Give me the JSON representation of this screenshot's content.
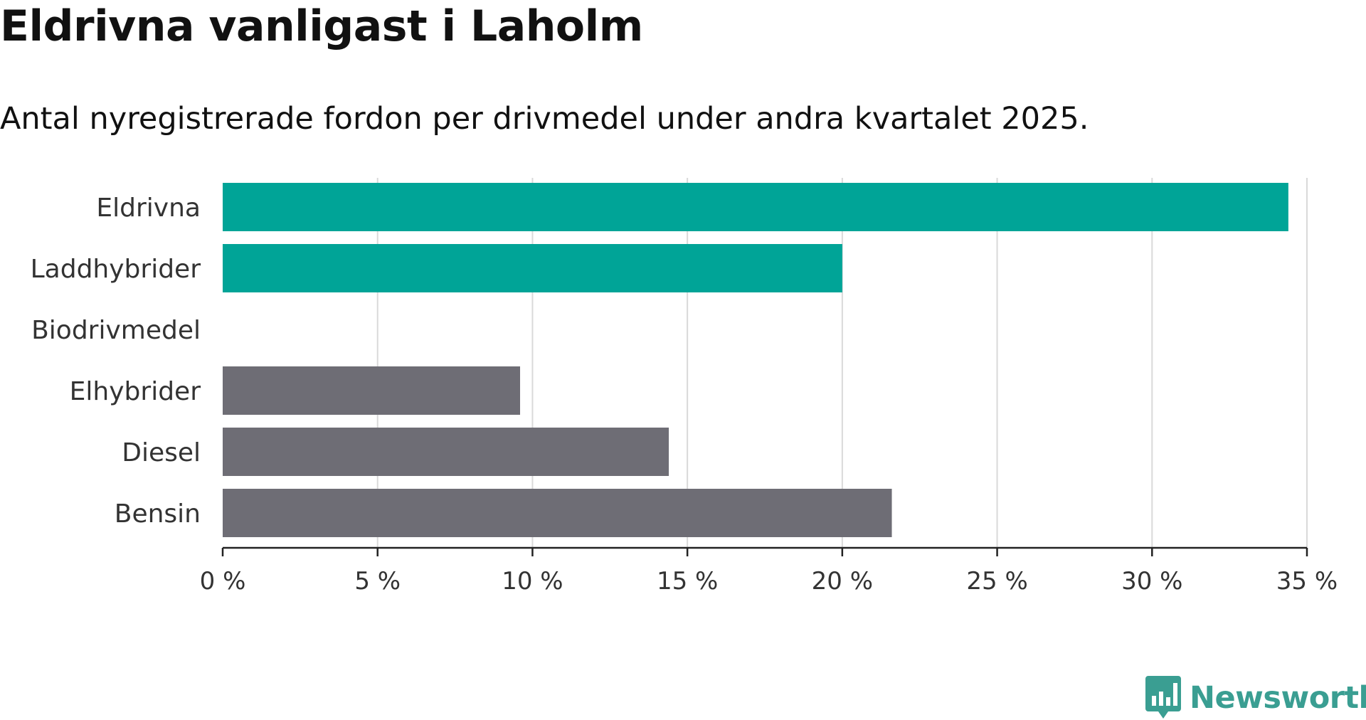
{
  "header": {
    "title": "Eldrivna vanligast i Laholm",
    "subtitle": "Antal nyregistrerade fordon per drivmedel under andra kvartalet 2025."
  },
  "logo": {
    "text": "Newsworthy",
    "icon": "newsworthy-bar-chart-icon",
    "color": "#3a9e92"
  },
  "chart_data": {
    "type": "bar",
    "orientation": "horizontal",
    "categories": [
      "Eldrivna",
      "Laddhybrider",
      "Biodrivmedel",
      "Elhybrider",
      "Diesel",
      "Bensin"
    ],
    "values": [
      34.4,
      20.0,
      0,
      9.6,
      14.4,
      21.6
    ],
    "colors": [
      "#00a497",
      "#00a497",
      "#00a497",
      "#6e6d75",
      "#6e6d75",
      "#6e6d75"
    ],
    "xlim": [
      0,
      35
    ],
    "xticks": [
      0,
      5,
      10,
      15,
      20,
      25,
      30,
      35
    ],
    "xtick_labels": [
      "0 %",
      "5 %",
      "10 %",
      "15 %",
      "20 %",
      "25 %",
      "30 %",
      "35 %"
    ],
    "grid": true,
    "title": "Eldrivna vanligast i Laholm",
    "xlabel": "",
    "ylabel": ""
  }
}
